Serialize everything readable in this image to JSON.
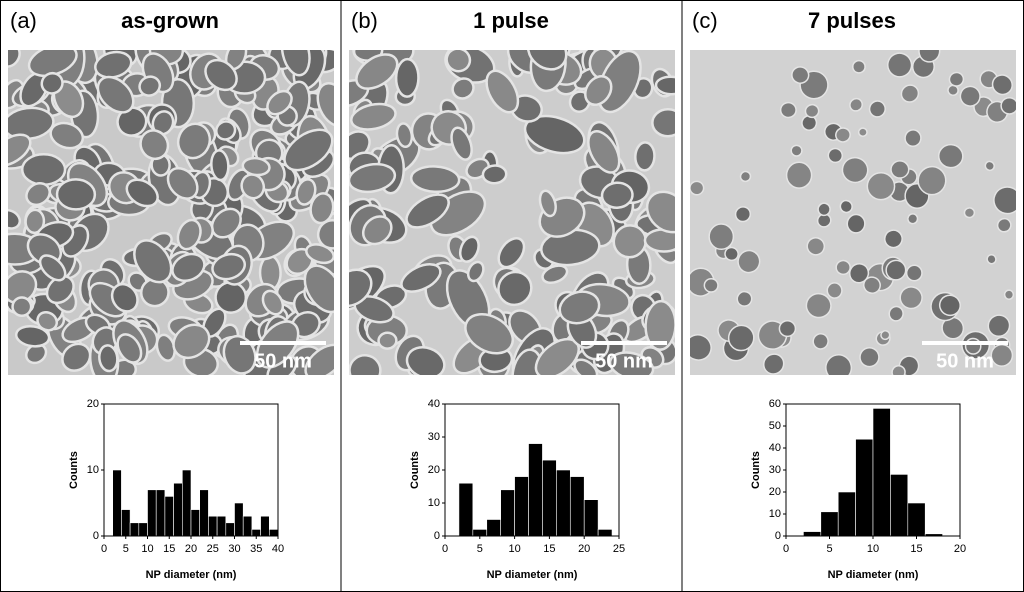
{
  "chart_data": [
    {
      "type": "histogram",
      "panel_label": "(a)",
      "title": "as-grown",
      "scale_bar_label": "50 nm",
      "xlabel": "NP diameter (nm)",
      "ylabel": "Counts",
      "color": "#000000",
      "bins": [
        2,
        4,
        6,
        8,
        10,
        12,
        14,
        16,
        18,
        20,
        22,
        24,
        26,
        28,
        30,
        32,
        34,
        36,
        38,
        40
      ],
      "values": [
        10,
        4,
        2,
        2,
        7,
        7,
        6,
        8,
        10,
        4,
        7,
        3,
        3,
        2,
        5,
        3,
        1,
        3,
        1
      ],
      "xlim": [
        0,
        40
      ],
      "xticks": [
        0,
        5,
        10,
        15,
        20,
        25,
        30,
        35,
        40
      ],
      "ylim": [
        0,
        20
      ],
      "yticks": [
        0,
        10,
        20
      ]
    },
    {
      "type": "histogram",
      "panel_label": "(b)",
      "title": "1 pulse",
      "scale_bar_label": "50 nm",
      "xlabel": "NP diameter (nm)",
      "ylabel": "Counts",
      "color": "#000000",
      "bins": [
        2,
        4,
        6,
        8,
        10,
        12,
        14,
        16,
        18,
        20,
        22,
        24
      ],
      "values": [
        16,
        2,
        5,
        14,
        18,
        28,
        23,
        20,
        18,
        11,
        2
      ],
      "xlim": [
        0,
        25
      ],
      "xticks": [
        0,
        5,
        10,
        15,
        20,
        25
      ],
      "ylim": [
        0,
        40
      ],
      "yticks": [
        0,
        10,
        20,
        30,
        40
      ]
    },
    {
      "type": "histogram",
      "panel_label": "(c)",
      "title": "7 pulses",
      "scale_bar_label": "50 nm",
      "xlabel": "NP diameter (nm)",
      "ylabel": "Counts",
      "color": "#000000",
      "bins": [
        2,
        4,
        6,
        8,
        10,
        12,
        14,
        16,
        18
      ],
      "values": [
        2,
        11,
        20,
        44,
        58,
        28,
        15,
        1
      ],
      "xlim": [
        0,
        20
      ],
      "xticks": [
        0,
        5,
        10,
        15,
        20
      ],
      "ylim": [
        0,
        60
      ],
      "yticks": [
        0,
        10,
        20,
        30,
        40,
        50,
        60
      ]
    }
  ]
}
